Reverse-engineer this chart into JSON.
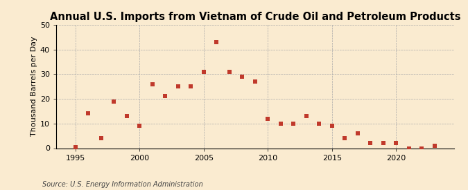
{
  "title": "Annual U.S. Imports from Vietnam of Crude Oil and Petroleum Products",
  "ylabel": "Thousand Barrels per Day",
  "source": "Source: U.S. Energy Information Administration",
  "years": [
    1995,
    1996,
    1997,
    1998,
    1999,
    2000,
    2001,
    2002,
    2003,
    2004,
    2005,
    2006,
    2007,
    2008,
    2009,
    2010,
    2011,
    2012,
    2013,
    2014,
    2015,
    2016,
    2017,
    2018,
    2019,
    2020,
    2021,
    2022,
    2023
  ],
  "values": [
    0.5,
    14,
    4,
    19,
    13,
    9,
    26,
    21,
    25,
    25,
    31,
    43,
    31,
    29,
    27,
    12,
    10,
    10,
    13,
    10,
    9,
    4,
    6,
    2,
    2,
    2,
    0,
    0,
    1
  ],
  "marker_color": "#c0392b",
  "marker_size": 18,
  "background_color": "#faebd0",
  "plot_bg_color": "#faebd0",
  "grid_color": "#aaaaaa",
  "xlim": [
    1993.5,
    2024.5
  ],
  "ylim": [
    0,
    50
  ],
  "yticks": [
    0,
    10,
    20,
    30,
    40,
    50
  ],
  "xticks": [
    1995,
    2000,
    2005,
    2010,
    2015,
    2020
  ],
  "title_fontsize": 10.5,
  "label_fontsize": 8,
  "tick_fontsize": 8,
  "source_fontsize": 7
}
